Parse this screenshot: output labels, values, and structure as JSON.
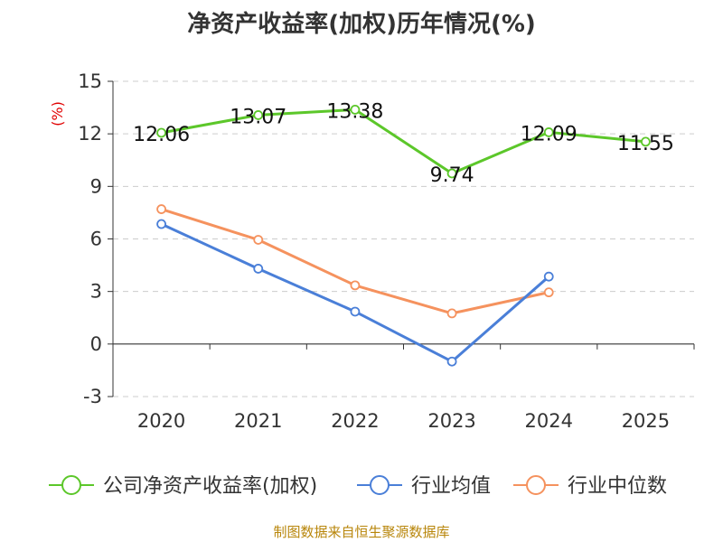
{
  "chart_data": {
    "type": "line",
    "title": "净资产收益率(加权)历年情况(%)",
    "ylabel": "(%)",
    "xlabel": "",
    "categories": [
      "2020",
      "2021",
      "2022",
      "2023",
      "2024",
      "2025"
    ],
    "ylim": [
      -3,
      15
    ],
    "yticks": [
      -3,
      0,
      3,
      6,
      9,
      12,
      15
    ],
    "grid": true,
    "legend_position": "bottom",
    "series": [
      {
        "name": "公司净资产收益率(加权)",
        "color": "#5cc72a",
        "values": [
          12.06,
          13.07,
          13.38,
          9.74,
          12.09,
          11.55
        ],
        "labels": [
          "12.06",
          "13.07",
          "13.38",
          "9.74",
          "12.09",
          "11.55"
        ]
      },
      {
        "name": "行业均值",
        "color": "#4a7fd8",
        "values": [
          6.85,
          4.3,
          1.85,
          -1.0,
          3.85,
          null
        ]
      },
      {
        "name": "行业中位数",
        "color": "#f5925e",
        "values": [
          7.7,
          5.95,
          3.35,
          1.75,
          2.95,
          null
        ]
      }
    ]
  },
  "source": "制图数据来自恒生聚源数据库"
}
